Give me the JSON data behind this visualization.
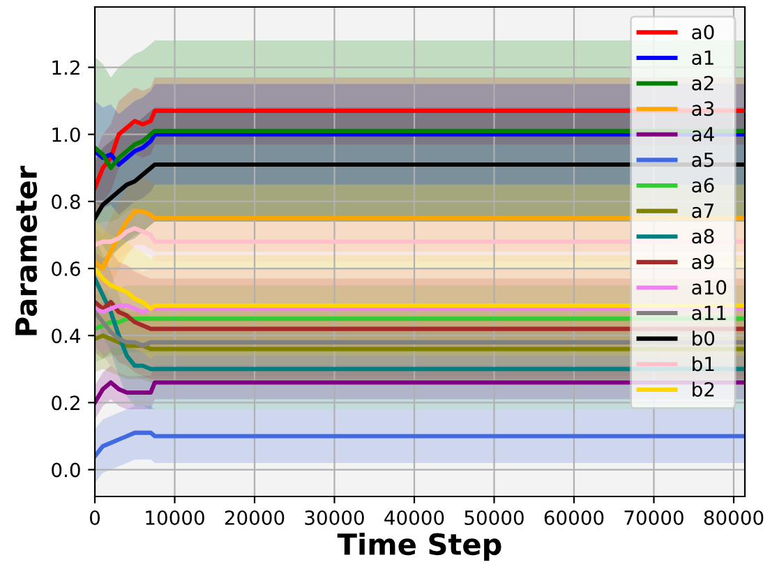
{
  "chart_data": {
    "type": "line",
    "xlabel": "Time Step",
    "ylabel": "Parameter",
    "x": [
      0,
      1000,
      2000,
      3000,
      4000,
      5000,
      6000,
      7000,
      7500,
      81400
    ],
    "xlim": [
      0,
      81400
    ],
    "ylim": [
      -0.08,
      1.38
    ],
    "xticks": [
      0,
      10000,
      20000,
      30000,
      40000,
      50000,
      60000,
      70000,
      80000
    ],
    "yticks": [
      {
        "value": 0,
        "label": "0.0"
      },
      {
        "value": 0.2,
        "label": "0.2"
      },
      {
        "value": 0.4,
        "label": "0.4"
      },
      {
        "value": 0.6,
        "label": "0.6"
      },
      {
        "value": 0.8,
        "label": "0.8"
      },
      {
        "value": 1.0,
        "label": "1.0"
      },
      {
        "value": 1.2,
        "label": "1.2"
      }
    ],
    "grid": true,
    "legend": "top right",
    "series": [
      {
        "name": "a0",
        "color": "#ff0000",
        "values": [
          0.84,
          0.9,
          0.93,
          1.0,
          1.02,
          1.04,
          1.03,
          1.04,
          1.07,
          1.07
        ],
        "lower": [
          0.74,
          0.8,
          0.83,
          0.9,
          0.92,
          0.94,
          0.93,
          0.94,
          0.97,
          0.97
        ],
        "upper": [
          0.94,
          1.0,
          1.03,
          1.1,
          1.12,
          1.14,
          1.13,
          1.14,
          1.17,
          1.17
        ]
      },
      {
        "name": "a1",
        "color": "#0000ff",
        "values": [
          0.95,
          0.93,
          0.94,
          0.91,
          0.93,
          0.95,
          0.96,
          0.98,
          1.0,
          1.0
        ],
        "lower": [
          0.8,
          0.78,
          0.79,
          0.76,
          0.78,
          0.8,
          0.81,
          0.83,
          0.85,
          0.85
        ],
        "upper": [
          1.1,
          1.08,
          1.09,
          1.06,
          1.08,
          1.1,
          1.11,
          1.13,
          1.15,
          1.15
        ]
      },
      {
        "name": "a2",
        "color": "#008000",
        "values": [
          0.96,
          0.94,
          0.9,
          0.93,
          0.95,
          0.97,
          0.98,
          1.0,
          1.01,
          1.01
        ],
        "lower": [
          0.69,
          0.67,
          0.63,
          0.66,
          0.68,
          0.7,
          0.71,
          0.73,
          0.74,
          0.74
        ],
        "upper": [
          1.23,
          1.21,
          1.17,
          1.2,
          1.22,
          1.24,
          1.25,
          1.27,
          1.28,
          1.28
        ]
      },
      {
        "name": "a3",
        "color": "#ffa500",
        "values": [
          0.62,
          0.6,
          0.65,
          0.7,
          0.74,
          0.77,
          0.77,
          0.76,
          0.75,
          0.75
        ],
        "lower": [
          0.52,
          0.5,
          0.55,
          0.6,
          0.64,
          0.67,
          0.67,
          0.66,
          0.65,
          0.65
        ],
        "upper": [
          0.72,
          0.7,
          0.75,
          0.8,
          0.84,
          0.87,
          0.87,
          0.86,
          0.85,
          0.85
        ]
      },
      {
        "name": "a4",
        "color": "#800080",
        "values": [
          0.2,
          0.24,
          0.26,
          0.24,
          0.23,
          0.23,
          0.23,
          0.23,
          0.26,
          0.26
        ],
        "lower": [
          0.15,
          0.19,
          0.21,
          0.19,
          0.18,
          0.18,
          0.18,
          0.18,
          0.21,
          0.21
        ],
        "upper": [
          0.25,
          0.29,
          0.31,
          0.29,
          0.28,
          0.28,
          0.28,
          0.28,
          0.31,
          0.31
        ]
      },
      {
        "name": "a5",
        "color": "#4169e1",
        "values": [
          0.04,
          0.07,
          0.08,
          0.09,
          0.1,
          0.11,
          0.11,
          0.11,
          0.1,
          0.1
        ],
        "lower": [
          -0.04,
          -0.01,
          0.0,
          0.01,
          0.02,
          0.03,
          0.03,
          0.03,
          0.02,
          0.02
        ],
        "upper": [
          0.12,
          0.15,
          0.16,
          0.17,
          0.18,
          0.19,
          0.19,
          0.19,
          0.18,
          0.18
        ]
      },
      {
        "name": "a6",
        "color": "#32cd32",
        "values": [
          0.42,
          0.43,
          0.44,
          0.44,
          0.45,
          0.45,
          0.45,
          0.45,
          0.45,
          0.45
        ],
        "lower": [
          0.32,
          0.33,
          0.34,
          0.34,
          0.35,
          0.35,
          0.35,
          0.35,
          0.35,
          0.35
        ],
        "upper": [
          0.52,
          0.53,
          0.54,
          0.54,
          0.55,
          0.55,
          0.55,
          0.55,
          0.55,
          0.55
        ]
      },
      {
        "name": "a7",
        "color": "#808000",
        "values": [
          0.39,
          0.4,
          0.39,
          0.38,
          0.37,
          0.37,
          0.37,
          0.36,
          0.36,
          0.36
        ],
        "lower": [
          0.29,
          0.3,
          0.29,
          0.28,
          0.27,
          0.27,
          0.27,
          0.26,
          0.26,
          0.26
        ],
        "upper": [
          0.49,
          0.5,
          0.49,
          0.48,
          0.47,
          0.47,
          0.47,
          0.46,
          0.46,
          0.46
        ]
      },
      {
        "name": "a8",
        "color": "#008080",
        "values": [
          0.57,
          0.52,
          0.47,
          0.4,
          0.34,
          0.31,
          0.31,
          0.3,
          0.3,
          0.3
        ],
        "lower": [
          0.45,
          0.4,
          0.35,
          0.28,
          0.22,
          0.19,
          0.19,
          0.18,
          0.18,
          0.18
        ],
        "upper": [
          0.69,
          0.64,
          0.59,
          0.52,
          0.46,
          0.43,
          0.43,
          0.42,
          0.42,
          0.42
        ]
      },
      {
        "name": "a9",
        "color": "#a52a2a",
        "values": [
          0.5,
          0.48,
          0.5,
          0.47,
          0.46,
          0.44,
          0.43,
          0.42,
          0.42,
          0.42
        ],
        "lower": [
          0.35,
          0.33,
          0.35,
          0.32,
          0.31,
          0.29,
          0.28,
          0.27,
          0.27,
          0.27
        ],
        "upper": [
          0.65,
          0.63,
          0.65,
          0.62,
          0.61,
          0.59,
          0.58,
          0.57,
          0.57,
          0.57
        ]
      },
      {
        "name": "a10",
        "color": "#ee82ee",
        "values": [
          0.48,
          0.47,
          0.48,
          0.49,
          0.49,
          0.48,
          0.47,
          0.48,
          0.48,
          0.48
        ],
        "lower": [
          0.36,
          0.35,
          0.36,
          0.37,
          0.37,
          0.36,
          0.35,
          0.36,
          0.36,
          0.36
        ],
        "upper": [
          0.6,
          0.59,
          0.6,
          0.61,
          0.61,
          0.6,
          0.59,
          0.6,
          0.6,
          0.6
        ]
      },
      {
        "name": "a11",
        "color": "#808080",
        "values": [
          0.47,
          0.44,
          0.41,
          0.39,
          0.38,
          0.38,
          0.37,
          0.38,
          0.38,
          0.38
        ],
        "lower": [
          0.37,
          0.34,
          0.31,
          0.29,
          0.28,
          0.28,
          0.27,
          0.28,
          0.28,
          0.28
        ],
        "upper": [
          0.57,
          0.54,
          0.51,
          0.49,
          0.48,
          0.48,
          0.47,
          0.48,
          0.48,
          0.48
        ]
      },
      {
        "name": "b0",
        "color": "#000000",
        "values": [
          0.75,
          0.79,
          0.81,
          0.83,
          0.85,
          0.86,
          0.88,
          0.9,
          0.91,
          0.91
        ],
        "lower": [
          0.58,
          0.62,
          0.64,
          0.66,
          0.68,
          0.69,
          0.71,
          0.73,
          0.74,
          0.74
        ],
        "upper": [
          0.92,
          0.96,
          0.98,
          1.0,
          1.02,
          1.03,
          1.05,
          1.07,
          1.08,
          1.08
        ]
      },
      {
        "name": "b1",
        "color": "#ffc0cb",
        "values": [
          0.67,
          0.68,
          0.68,
          0.69,
          0.71,
          0.72,
          0.71,
          0.7,
          0.68,
          0.68
        ],
        "lower": [
          0.61,
          0.62,
          0.62,
          0.63,
          0.65,
          0.66,
          0.65,
          0.64,
          0.62,
          0.62
        ],
        "upper": [
          0.73,
          0.74,
          0.74,
          0.75,
          0.77,
          0.78,
          0.77,
          0.76,
          0.74,
          0.74
        ]
      },
      {
        "name": "b2",
        "color": "#ffd700",
        "values": [
          0.6,
          0.57,
          0.55,
          0.54,
          0.53,
          0.51,
          0.5,
          0.48,
          0.49,
          0.49
        ],
        "lower": [
          0.45,
          0.42,
          0.4,
          0.39,
          0.38,
          0.36,
          0.35,
          0.33,
          0.34,
          0.34
        ],
        "upper": [
          0.75,
          0.72,
          0.7,
          0.69,
          0.68,
          0.66,
          0.65,
          0.63,
          0.64,
          0.64
        ]
      }
    ]
  }
}
